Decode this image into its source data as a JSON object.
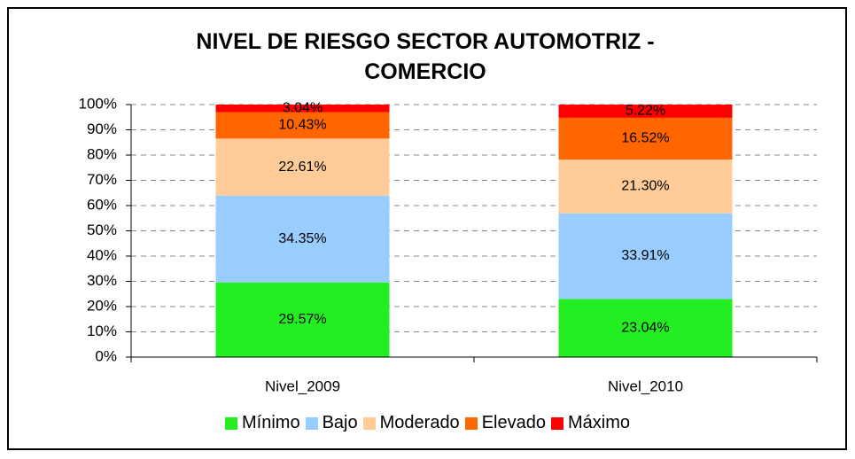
{
  "chart_data": {
    "type": "stacked_bar",
    "title": "NIVEL DE RIESGO SECTOR AUTOMOTRIZ - COMERCIO",
    "categories": [
      "Nivel_2009",
      "Nivel_2010"
    ],
    "series": [
      {
        "name": "Mínimo",
        "color": "#22ee22",
        "values": [
          29.57,
          23.04
        ],
        "value_labels": [
          "29.57%",
          "23.04%"
        ]
      },
      {
        "name": "Bajo",
        "color": "#99ccff",
        "values": [
          34.35,
          33.91
        ],
        "value_labels": [
          "34.35%",
          "33.91%"
        ]
      },
      {
        "name": "Moderado",
        "color": "#ffcc99",
        "values": [
          22.61,
          21.3
        ],
        "value_labels": [
          "22.61%",
          "21.30%"
        ]
      },
      {
        "name": "Elevado",
        "color": "#ff6600",
        "values": [
          10.43,
          16.52
        ],
        "value_labels": [
          "10.43%",
          "16.52%"
        ]
      },
      {
        "name": "Máximo",
        "color": "#ff0000",
        "values": [
          3.04,
          5.22
        ],
        "value_labels": [
          "3.04%",
          "5.22%"
        ]
      }
    ],
    "ylim": [
      0,
      100
    ],
    "yticks": [
      {
        "value": 0,
        "label": "0%"
      },
      {
        "value": 10,
        "label": "10%"
      },
      {
        "value": 20,
        "label": "20%"
      },
      {
        "value": 30,
        "label": "30%"
      },
      {
        "value": 40,
        "label": "40%"
      },
      {
        "value": 50,
        "label": "50%"
      },
      {
        "value": 60,
        "label": "60%"
      },
      {
        "value": 70,
        "label": "70%"
      },
      {
        "value": 80,
        "label": "80%"
      },
      {
        "value": 90,
        "label": "90%"
      },
      {
        "value": 100,
        "label": "100%"
      }
    ],
    "grid": true,
    "legend": "bottom"
  }
}
